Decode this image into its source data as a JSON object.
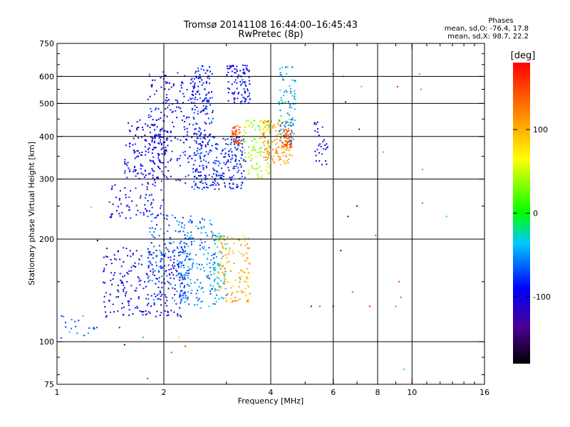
{
  "header": {
    "title_line1": "Tromsø 20141108 16:44:00–16:45:43",
    "title_line2": "RwPretec (8p)"
  },
  "stats": {
    "heading": "Phases",
    "line_o": "mean, sd,O: -76.4, 17.8",
    "line_x": "mean, sd,X: 98.7, 22.2"
  },
  "colorbar": {
    "label": "[deg]",
    "ticks": [
      {
        "value": 100,
        "label": "100"
      },
      {
        "value": 0,
        "label": "0"
      },
      {
        "value": -100,
        "label": "-100"
      }
    ],
    "range": [
      -180,
      180
    ]
  },
  "chart_data": {
    "type": "scatter",
    "xlabel": "Frequency [MHz]",
    "ylabel": "Stationary phase Virtual Height [km]",
    "xscale": "log",
    "yscale": "log",
    "xlim": [
      1,
      16
    ],
    "ylim": [
      75,
      750
    ],
    "xticks": [
      {
        "value": 1,
        "label": "1"
      },
      {
        "value": 2,
        "label": "2"
      },
      {
        "value": 4,
        "label": "4"
      },
      {
        "value": 6,
        "label": "6"
      },
      {
        "value": 8,
        "label": "8"
      },
      {
        "value": 10,
        "label": "10"
      },
      {
        "value": 16,
        "label": "16"
      }
    ],
    "yticks": [
      {
        "value": 75,
        "label": "75"
      },
      {
        "value": 100,
        "label": "100"
      },
      {
        "value": 200,
        "label": "200"
      },
      {
        "value": 300,
        "label": "300"
      },
      {
        "value": 400,
        "label": "400"
      },
      {
        "value": 500,
        "label": "500"
      },
      {
        "value": 600,
        "label": "600"
      },
      {
        "value": 750,
        "label": "750"
      }
    ],
    "grid_x": [
      2,
      4,
      6,
      8,
      10
    ],
    "grid_y": [
      100,
      200,
      300,
      400,
      500,
      600
    ],
    "color_by": "phase [deg]",
    "clusters": [
      {
        "x_range": [
          1.55,
          2.05
        ],
        "y_range": [
          300,
          450
        ],
        "phase": -100,
        "density": 150
      },
      {
        "x_range": [
          1.8,
          2.7
        ],
        "y_range": [
          290,
          620
        ],
        "phase": -95,
        "density": 260
      },
      {
        "x_range": [
          2.4,
          2.75
        ],
        "y_range": [
          280,
          650
        ],
        "phase": -80,
        "density": 160
      },
      {
        "x_range": [
          2.75,
          3.4
        ],
        "y_range": [
          280,
          400
        ],
        "phase": -85,
        "density": 160
      },
      {
        "x_range": [
          3.0,
          3.5
        ],
        "y_range": [
          500,
          650
        ],
        "phase": -95,
        "density": 100
      },
      {
        "x_range": [
          3.3,
          4.0
        ],
        "y_range": [
          300,
          450
        ],
        "phase": 40,
        "density": 110
      },
      {
        "x_range": [
          3.1,
          3.3
        ],
        "y_range": [
          380,
          430
        ],
        "phase": 145,
        "density": 40
      },
      {
        "x_range": [
          3.8,
          4.6
        ],
        "y_range": [
          330,
          450
        ],
        "phase": 110,
        "density": 130
      },
      {
        "x_range": [
          4.2,
          4.7
        ],
        "y_range": [
          380,
          640
        ],
        "phase": -45,
        "density": 90
      },
      {
        "x_range": [
          4.3,
          4.6
        ],
        "y_range": [
          370,
          420
        ],
        "phase": 140,
        "density": 40
      },
      {
        "x_range": [
          1.4,
          2.0
        ],
        "y_range": [
          230,
          290
        ],
        "phase": -95,
        "density": 70
      },
      {
        "x_range": [
          1.35,
          2.3
        ],
        "y_range": [
          118,
          190
        ],
        "phase": -100,
        "density": 240
      },
      {
        "x_range": [
          1.8,
          2.4
        ],
        "y_range": [
          130,
          240
        ],
        "phase": -70,
        "density": 150
      },
      {
        "x_range": [
          2.2,
          2.8
        ],
        "y_range": [
          125,
          230
        ],
        "phase": -55,
        "density": 180
      },
      {
        "x_range": [
          2.7,
          3.0
        ],
        "y_range": [
          130,
          210
        ],
        "phase": -35,
        "density": 60
      },
      {
        "x_range": [
          2.85,
          3.5
        ],
        "y_range": [
          130,
          205
        ],
        "phase": 100,
        "density": 130
      },
      {
        "x_range": [
          1.0,
          1.3
        ],
        "y_range": [
          100,
          120
        ],
        "phase": -60,
        "density": 20
      },
      {
        "x_range": [
          5.3,
          5.8
        ],
        "y_range": [
          330,
          450
        ],
        "phase": -100,
        "density": 30
      }
    ],
    "scattered_points": [
      {
        "x": 5.2,
        "y": 127,
        "phase": -130
      },
      {
        "x": 5.5,
        "y": 127,
        "phase": 150
      },
      {
        "x": 6.0,
        "y": 127,
        "phase": -110
      },
      {
        "x": 7.6,
        "y": 127,
        "phase": 170
      },
      {
        "x": 9.0,
        "y": 127,
        "phase": 140
      },
      {
        "x": 9.2,
        "y": 150,
        "phase": 160
      },
      {
        "x": 9.3,
        "y": 135,
        "phase": 150
      },
      {
        "x": 9.1,
        "y": 560,
        "phase": 175
      },
      {
        "x": 10.6,
        "y": 550,
        "phase": 130
      },
      {
        "x": 8.3,
        "y": 360,
        "phase": 120
      },
      {
        "x": 7.9,
        "y": 205,
        "phase": 150
      },
      {
        "x": 10.7,
        "y": 255,
        "phase": 150
      },
      {
        "x": 10.7,
        "y": 320,
        "phase": -30
      },
      {
        "x": 12.5,
        "y": 233,
        "phase": -20
      },
      {
        "x": 6.8,
        "y": 140,
        "phase": 140
      },
      {
        "x": 6.3,
        "y": 185,
        "phase": -160
      },
      {
        "x": 6.6,
        "y": 233,
        "phase": -150
      },
      {
        "x": 6.4,
        "y": 600,
        "phase": -30
      },
      {
        "x": 6.0,
        "y": 610,
        "phase": 150
      },
      {
        "x": 6.5,
        "y": 505,
        "phase": -140
      },
      {
        "x": 7.2,
        "y": 560,
        "phase": 110
      },
      {
        "x": 7.1,
        "y": 420,
        "phase": -150
      },
      {
        "x": 7.0,
        "y": 250,
        "phase": -160
      },
      {
        "x": 9.5,
        "y": 83,
        "phase": -20
      },
      {
        "x": 1.25,
        "y": 248,
        "phase": 100
      },
      {
        "x": 1.3,
        "y": 198,
        "phase": -170
      },
      {
        "x": 1.8,
        "y": 78,
        "phase": 170
      },
      {
        "x": 2.1,
        "y": 93,
        "phase": 160
      },
      {
        "x": 2.3,
        "y": 97,
        "phase": 160
      },
      {
        "x": 2.2,
        "y": 103,
        "phase": 80
      },
      {
        "x": 1.55,
        "y": 98,
        "phase": -150
      },
      {
        "x": 1.85,
        "y": 560,
        "phase": -160
      },
      {
        "x": 1.82,
        "y": 610,
        "phase": -50
      },
      {
        "x": 1.75,
        "y": 103,
        "phase": -40
      },
      {
        "x": 1.5,
        "y": 110,
        "phase": -80
      },
      {
        "x": 10.5,
        "y": 610,
        "phase": 120
      }
    ]
  }
}
